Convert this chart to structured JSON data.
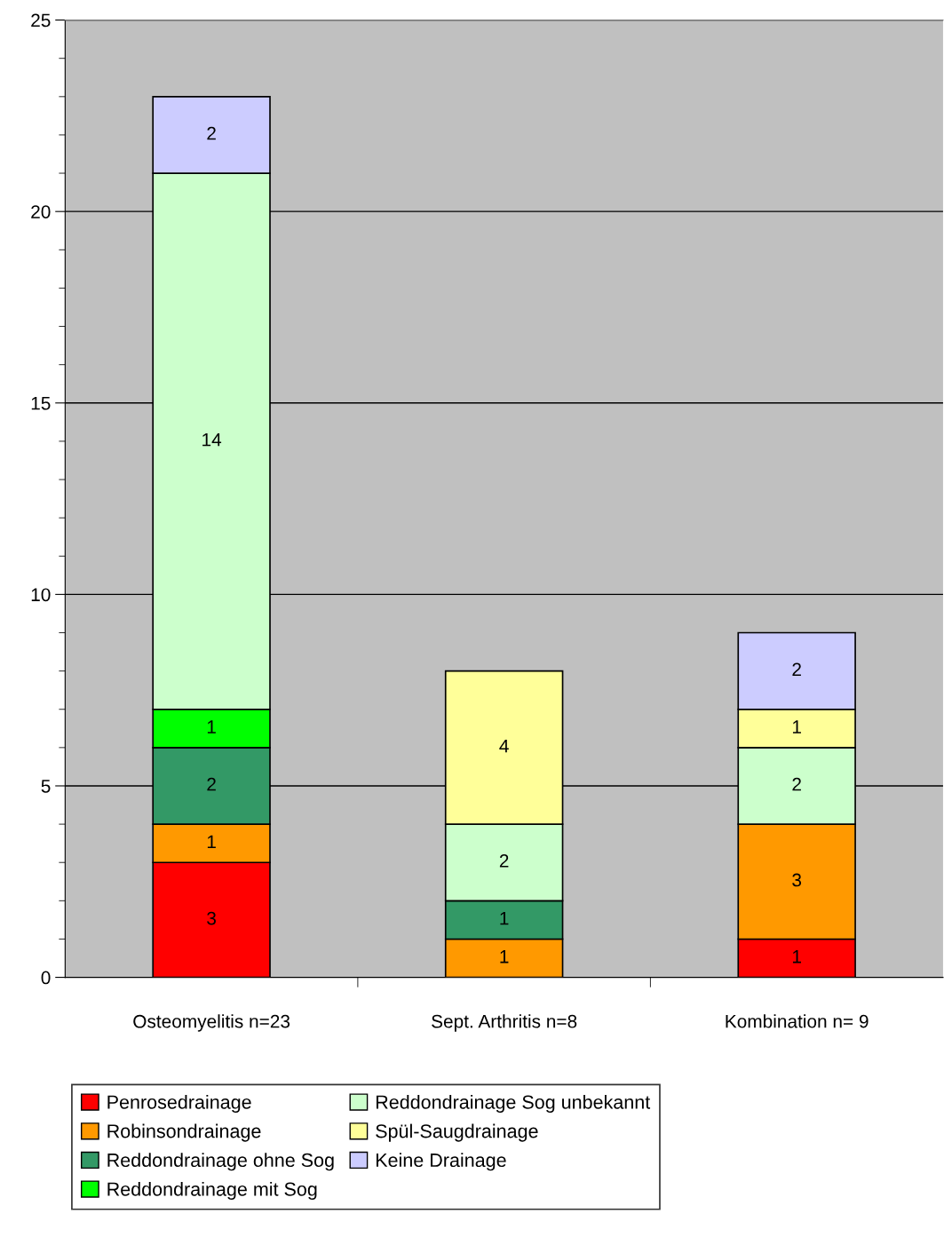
{
  "chart_data": {
    "type": "bar",
    "stacked": true,
    "categories": [
      "Osteomyelitis n=23",
      "Sept. Arthritis n=8",
      "Kombination n= 9"
    ],
    "series": [
      {
        "name": "Penrosedrainage",
        "color": "#ff0000",
        "values": [
          3,
          null,
          1
        ]
      },
      {
        "name": "Robinsondrainage",
        "color": "#ff9900",
        "values": [
          1,
          1,
          3
        ]
      },
      {
        "name": "Reddondrainage ohne Sog",
        "color": "#339966",
        "values": [
          2,
          1,
          null
        ]
      },
      {
        "name": "Reddondrainage mit Sog",
        "color": "#00ff00",
        "values": [
          1,
          null,
          null
        ]
      },
      {
        "name": "Reddondrainage Sog unbekannt",
        "color": "#ccffcc",
        "values": [
          14,
          2,
          2
        ]
      },
      {
        "name": "Spül-Saugdrainage",
        "color": "#ffff99",
        "values": [
          null,
          4,
          1
        ]
      },
      {
        "name": "Keine Drainage",
        "color": "#ccccff",
        "values": [
          2,
          null,
          2
        ]
      }
    ],
    "ylim": [
      0,
      25
    ],
    "yticks": [
      0,
      {
        "value": 1,
        "label": null
      },
      {
        "value": 2,
        "label": null
      },
      {
        "value": 3,
        "label": null
      },
      {
        "value": 4,
        "label": null
      },
      5,
      {
        "value": 6,
        "label": null
      },
      {
        "value": 7,
        "label": null
      },
      {
        "value": 8,
        "label": null
      },
      {
        "value": 9,
        "label": null
      },
      10,
      {
        "value": 11,
        "label": null
      },
      {
        "value": 12,
        "label": null
      },
      {
        "value": 13,
        "label": null
      },
      {
        "value": 14,
        "label": null
      },
      15,
      {
        "value": 16,
        "label": null
      },
      {
        "value": 17,
        "label": null
      },
      {
        "value": 18,
        "label": null
      },
      {
        "value": 19,
        "label": null
      },
      20,
      {
        "value": 21,
        "label": null
      },
      {
        "value": 22,
        "label": null
      },
      {
        "value": 23,
        "label": null
      },
      {
        "value": 24,
        "label": null
      },
      25
    ],
    "grid": "y",
    "legend": "bottom",
    "data_labels": true
  }
}
